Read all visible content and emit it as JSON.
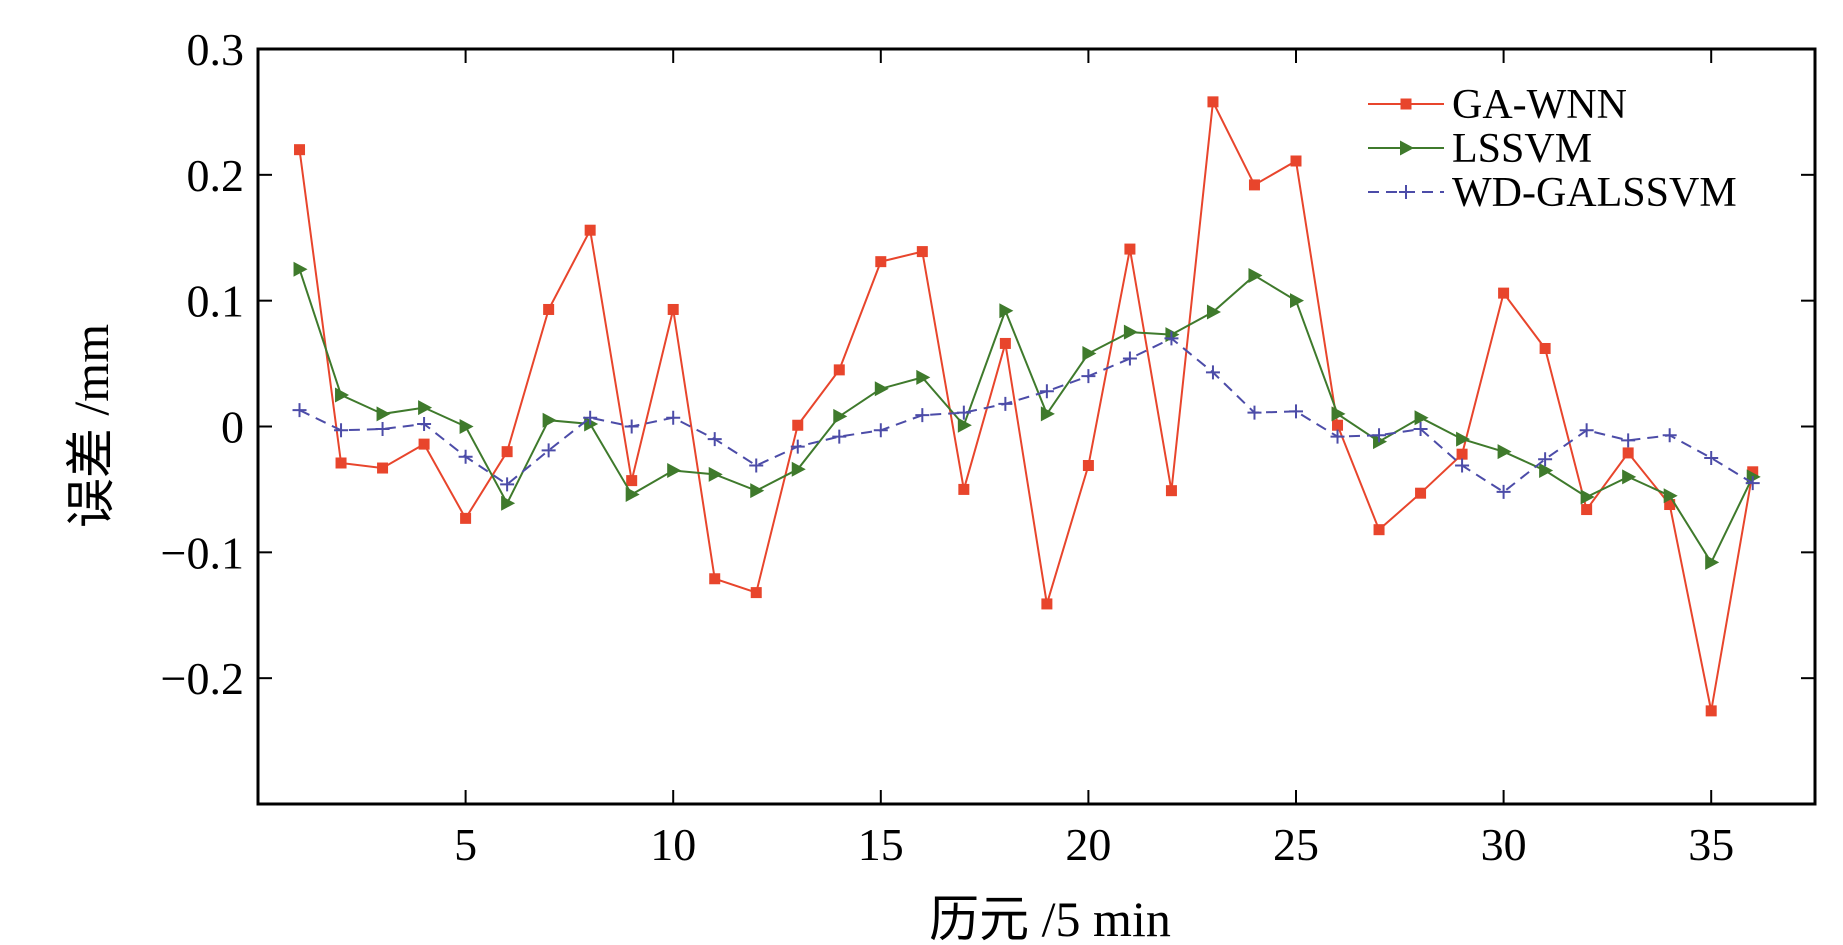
{
  "chart_data": {
    "type": "line",
    "xlabel": "历元 /5 min",
    "ylabel": "误差 /mm",
    "xlim": [
      0,
      37.5
    ],
    "ylim": [
      -0.3,
      0.3
    ],
    "x_ticks": [
      5,
      10,
      15,
      20,
      25,
      30,
      35
    ],
    "x_tick_labels": [
      "5",
      "10",
      "15",
      "20",
      "25",
      "30",
      "35"
    ],
    "y_ticks": [
      0.3,
      0.2,
      0.1,
      0,
      -0.1,
      -0.2
    ],
    "y_tick_labels": [
      "0.3",
      "0.2",
      "0.1",
      "0",
      "−0.1",
      "−0.2"
    ],
    "grid": false,
    "legend_position": "top-right",
    "x": [
      1,
      2,
      3,
      4,
      5,
      6,
      7,
      8,
      9,
      10,
      11,
      12,
      13,
      14,
      15,
      16,
      17,
      18,
      19,
      20,
      21,
      22,
      23,
      24,
      25,
      26,
      27,
      28,
      29,
      30,
      31,
      32,
      33,
      34,
      35,
      36
    ],
    "series": [
      {
        "name": "GA-WNN",
        "color": "#e8452c",
        "marker": "square",
        "line_style": "solid",
        "values": [
          0.22,
          -0.029,
          -0.033,
          -0.014,
          -0.073,
          -0.02,
          0.093,
          0.156,
          -0.043,
          0.093,
          -0.121,
          -0.132,
          0.001,
          0.045,
          0.131,
          0.139,
          -0.05,
          0.066,
          -0.141,
          -0.031,
          0.141,
          -0.051,
          0.258,
          0.192,
          0.211,
          0.001,
          -0.082,
          -0.053,
          -0.022,
          0.106,
          0.062,
          -0.066,
          -0.021,
          -0.062,
          -0.226,
          -0.036
        ]
      },
      {
        "name": "LSSVM",
        "color": "#3f7a2c",
        "marker": "triangle-right",
        "line_style": "solid",
        "values": [
          0.125,
          0.025,
          0.01,
          0.015,
          0.0,
          -0.061,
          0.005,
          0.002,
          -0.054,
          -0.035,
          -0.038,
          -0.051,
          -0.034,
          0.008,
          0.03,
          0.039,
          0.001,
          0.092,
          0.01,
          0.058,
          0.075,
          0.073,
          0.091,
          0.12,
          0.1,
          0.01,
          -0.012,
          0.007,
          -0.01,
          -0.02,
          -0.035,
          -0.056,
          -0.04,
          -0.055,
          -0.108,
          -0.04
        ]
      },
      {
        "name": "WD-GALSSVM",
        "color": "#4c4ca8",
        "marker": "plus",
        "line_style": "dashed",
        "values": [
          0.013,
          -0.003,
          -0.002,
          0.002,
          -0.024,
          -0.046,
          -0.019,
          0.007,
          0.0,
          0.007,
          -0.01,
          -0.031,
          -0.016,
          -0.008,
          -0.003,
          0.009,
          0.011,
          0.018,
          0.028,
          0.04,
          0.054,
          0.07,
          0.043,
          0.011,
          0.012,
          -0.008,
          -0.007,
          -0.002,
          -0.031,
          -0.052,
          -0.026,
          -0.003,
          -0.011,
          -0.007,
          -0.025,
          -0.045
        ]
      }
    ]
  }
}
